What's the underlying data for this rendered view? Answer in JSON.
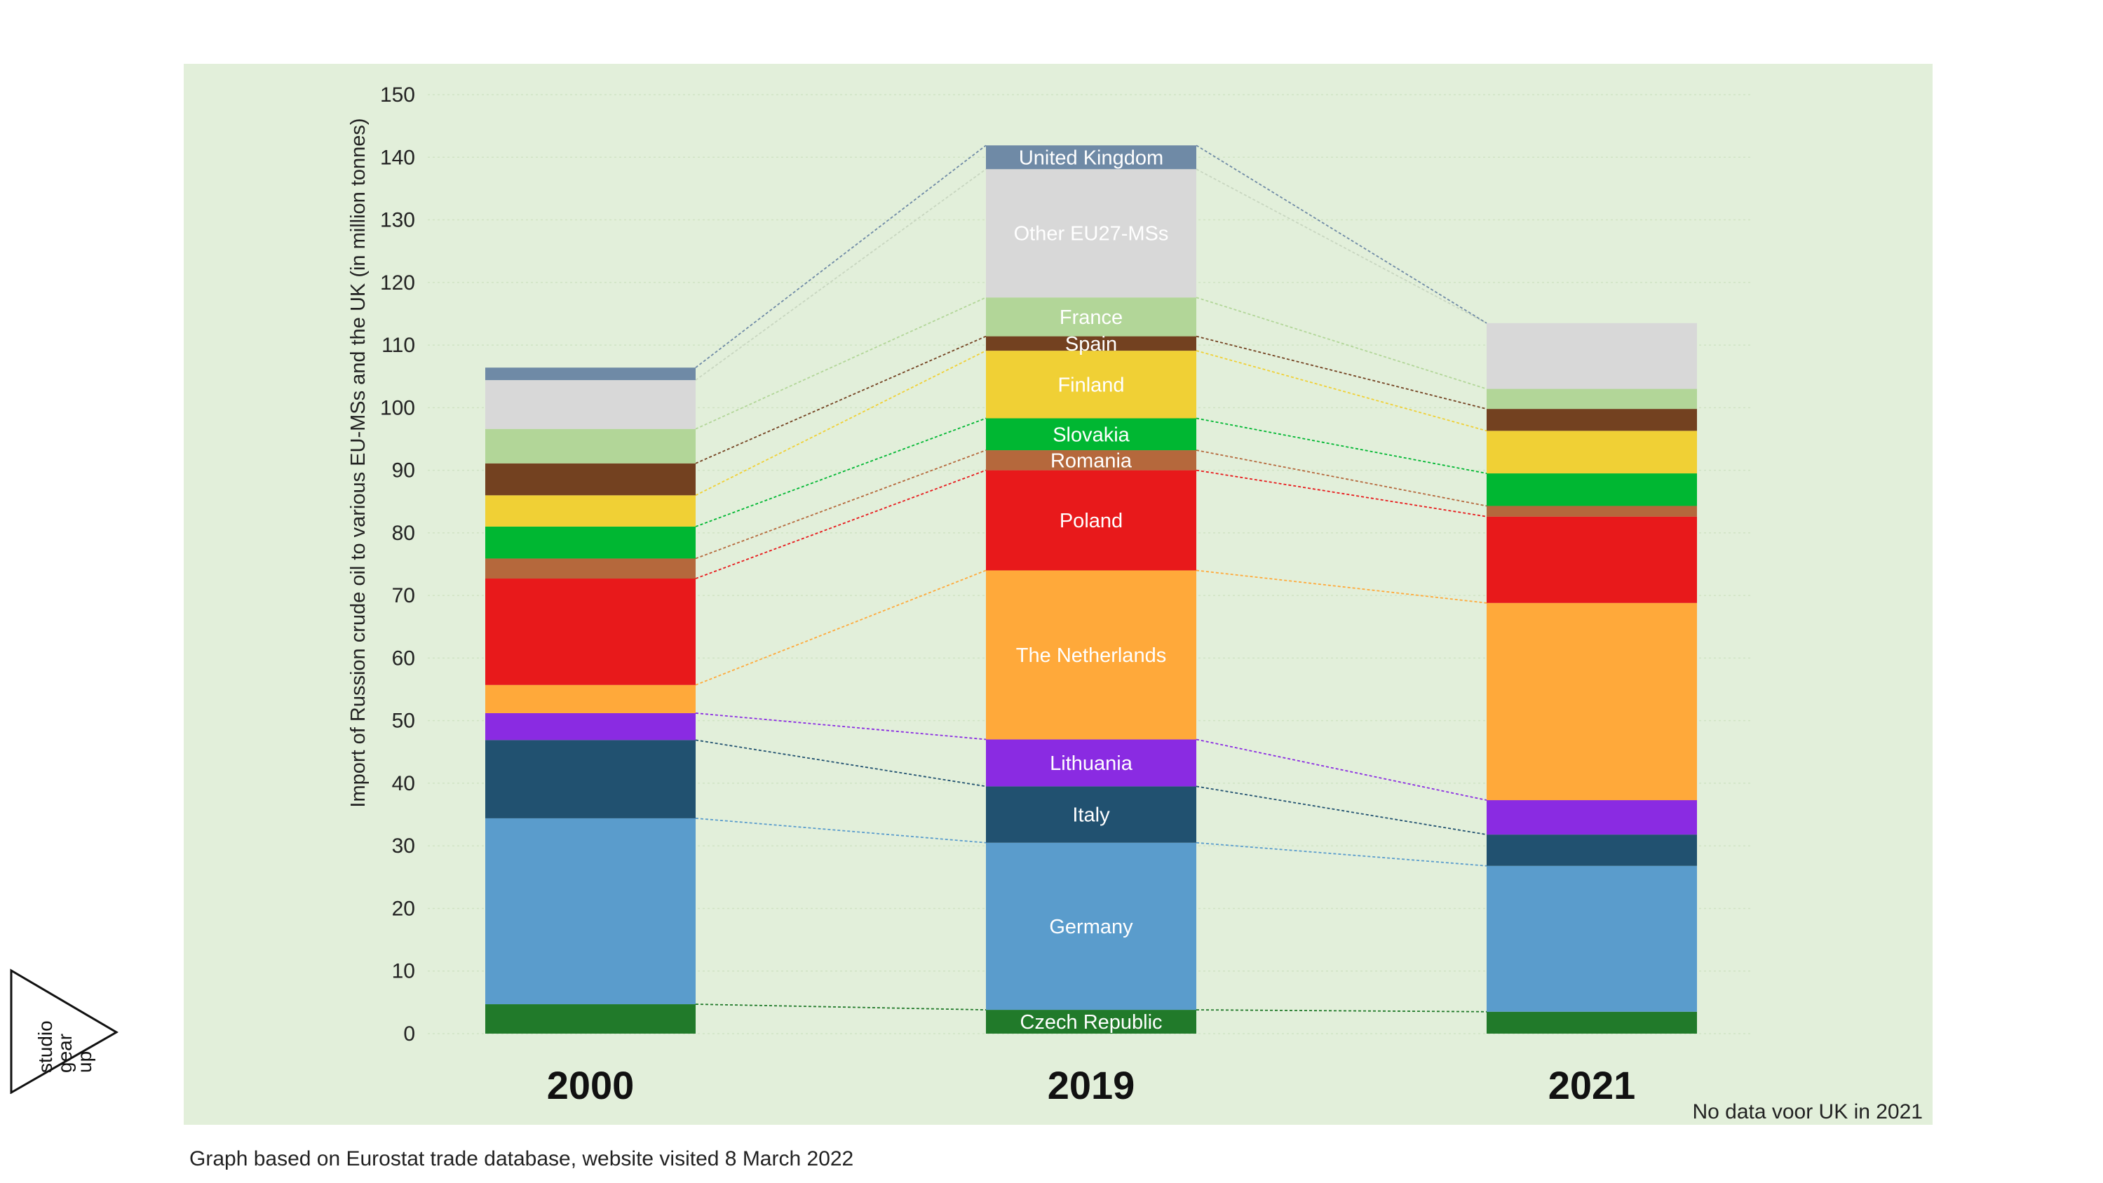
{
  "chart_data": {
    "type": "bar",
    "stacked": true,
    "ylabel": "Import of Russion crude oil to various EU-MSs and the UK (in million tonnes)",
    "ylim": [
      0,
      150
    ],
    "yticks": [
      0,
      10,
      20,
      30,
      40,
      50,
      60,
      70,
      80,
      90,
      100,
      110,
      120,
      130,
      140,
      150
    ],
    "grid": true,
    "categories": [
      "2000",
      "2019",
      "2021"
    ],
    "series": [
      {
        "name": "Czech Republic",
        "color": "#217a2a",
        "values": [
          4.7,
          3.8,
          3.5
        ]
      },
      {
        "name": "Germany",
        "color": "#5a9ccc",
        "values": [
          29.7,
          26.7,
          23.3
        ]
      },
      {
        "name": "Italy",
        "color": "#215170",
        "values": [
          12.5,
          9.0,
          5.0
        ]
      },
      {
        "name": "Lithuania",
        "color": "#8a2be2",
        "values": [
          4.3,
          7.5,
          5.5
        ]
      },
      {
        "name": "The Netherlands",
        "color": "#ffa93a",
        "values": [
          4.5,
          27.0,
          31.5
        ]
      },
      {
        "name": "Poland",
        "color": "#e8191b",
        "values": [
          17.0,
          16.0,
          13.8
        ]
      },
      {
        "name": "Romania",
        "color": "#b5683c",
        "values": [
          3.2,
          3.2,
          1.7
        ]
      },
      {
        "name": "Slovakia",
        "color": "#00b732",
        "values": [
          5.1,
          5.1,
          5.2
        ]
      },
      {
        "name": "Finland",
        "color": "#f0d035",
        "values": [
          5.0,
          10.8,
          6.8
        ]
      },
      {
        "name": "Spain",
        "color": "#734120",
        "values": [
          5.1,
          2.3,
          3.5
        ]
      },
      {
        "name": "France",
        "color": "#b2d698",
        "values": [
          5.5,
          6.2,
          3.2
        ]
      },
      {
        "name": "Other EU27-MSs",
        "color": "#d8d8d8",
        "values": [
          7.8,
          20.5,
          10.5
        ]
      },
      {
        "name": "United Kingdom",
        "color": "#6f8aa6",
        "values": [
          2.0,
          3.8,
          0
        ]
      }
    ],
    "annotations": [
      "No data voor UK in 2021"
    ]
  },
  "caption": "Graph based on Eurostat trade database, website visited 8 March 2022",
  "logo_text": [
    "studio",
    "gear",
    "up"
  ]
}
